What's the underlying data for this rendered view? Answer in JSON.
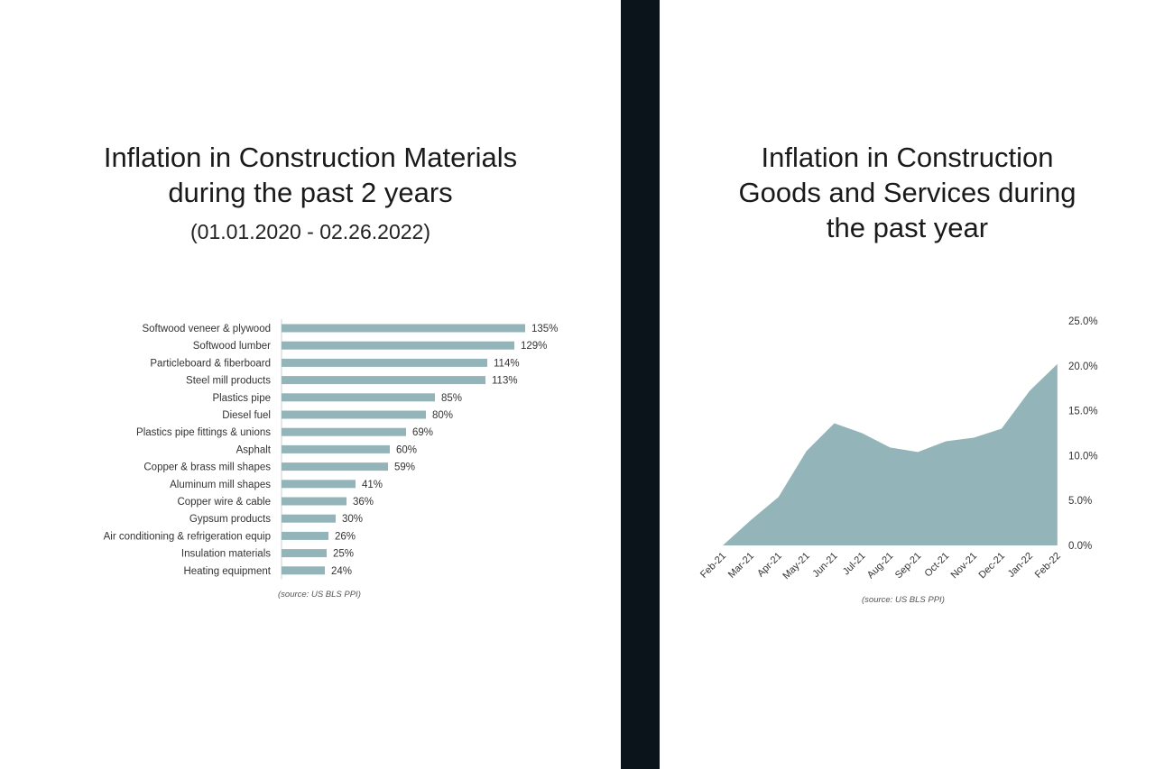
{
  "left": {
    "title_lines": [
      "Inflation in Construction Materials",
      "during the past 2 years"
    ],
    "subtitle": "(01.01.2020 - 02.26.2022)"
  },
  "right": {
    "title_lines": [
      "Inflation in Construction",
      "Goods and Services during",
      "the past year"
    ]
  },
  "colors": {
    "bar": "#93b4b8",
    "area": "#93b4b8",
    "divider": "#0b141b"
  },
  "chart_data": [
    {
      "type": "bar",
      "orientation": "horizontal",
      "title": "Inflation in Construction Materials during the past 2 years",
      "subtitle": "(01.01.2020 - 02.26.2022)",
      "categories": [
        "Softwood veneer & plywood",
        "Softwood lumber",
        "Particleboard & fiberboard",
        "Steel mill products",
        "Plastics pipe",
        "Diesel fuel",
        "Plastics pipe fittings & unions",
        "Asphalt",
        "Copper & brass mill shapes",
        "Aluminum mill shapes",
        "Copper wire & cable",
        "Gypsum products",
        "Air conditioning & refrigeration equip",
        "Insulation materials",
        "Heating equipment"
      ],
      "values": [
        135,
        129,
        114,
        113,
        85,
        80,
        69,
        60,
        59,
        41,
        36,
        30,
        26,
        25,
        24
      ],
      "value_labels": [
        "135%",
        "129%",
        "114%",
        "113%",
        "85%",
        "80%",
        "69%",
        "60%",
        "59%",
        "41%",
        "36%",
        "30%",
        "26%",
        "25%",
        "24%"
      ],
      "unit": "%",
      "source": "(source: US BLS PPI)",
      "grid": false
    },
    {
      "type": "area",
      "title": "Inflation in Construction Goods and Services during the past year",
      "x": [
        "Feb-21",
        "Mar-21",
        "Apr-21",
        "May-21",
        "Jun-21",
        "Jul-21",
        "Aug-21",
        "Sep-21",
        "Oct-21",
        "Nov-21",
        "Dec-21",
        "Jan-22",
        "Feb-22"
      ],
      "values": [
        0.0,
        2.8,
        5.4,
        10.5,
        13.6,
        12.5,
        10.9,
        10.4,
        11.6,
        12.0,
        13.0,
        17.2,
        20.2
      ],
      "unit": "%",
      "ylim": [
        0,
        25
      ],
      "yticks": [
        "0.0%",
        "5.0%",
        "10.0%",
        "15.0%",
        "20.0%",
        "25.0%"
      ],
      "y_axis_position": "right",
      "source": "(source: US BLS PPI)",
      "grid": false
    }
  ]
}
